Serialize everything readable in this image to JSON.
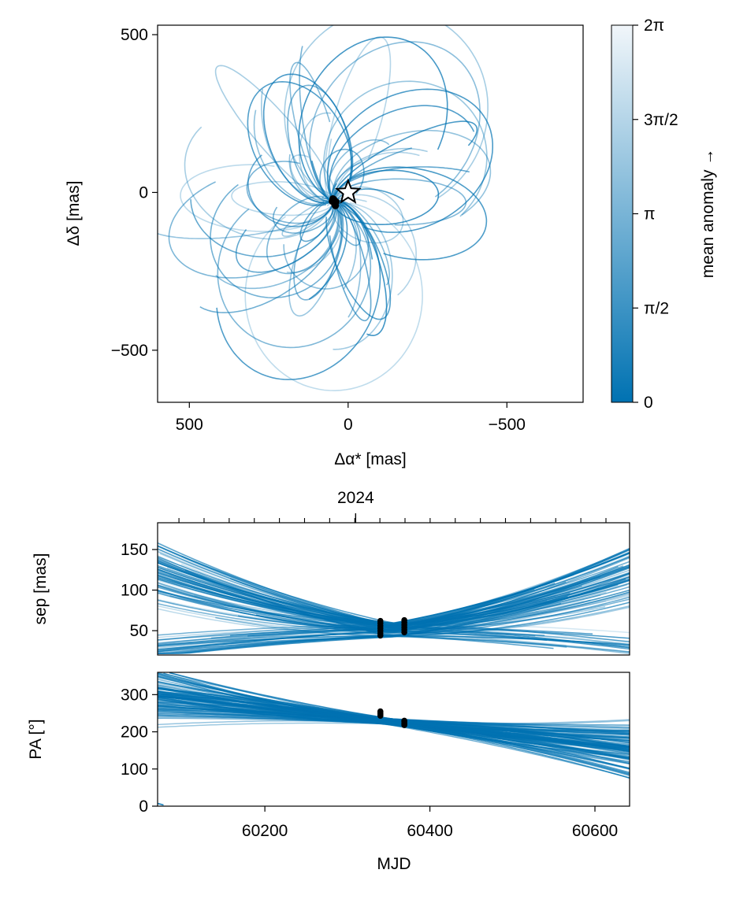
{
  "colors": {
    "orbit": "#0072b2",
    "marker": "#000000",
    "axis": "#000000"
  },
  "chart_data": [
    {
      "id": "sky",
      "type": "line",
      "xlabel": "Δα* [mas]",
      "ylabel": "Δδ [mas]",
      "xlim": [
        600,
        -740
      ],
      "ylim": [
        -665,
        530
      ],
      "xticks": [
        500,
        0,
        -500
      ],
      "xtick_labels": [
        "500",
        "0",
        "−500"
      ],
      "yticks": [
        500,
        0,
        -500
      ],
      "ytick_labels": [
        "500",
        "0",
        "−500"
      ],
      "star": [
        0,
        0
      ],
      "observations": [
        [
          38,
          -30
        ],
        [
          42,
          -38
        ],
        [
          45,
          -22
        ],
        [
          50,
          -28
        ],
        [
          48,
          -20
        ],
        [
          40,
          -42
        ]
      ],
      "colorbar": {
        "label": "mean anomaly →",
        "ticks": [
          0,
          1.5708,
          3.1416,
          4.7124,
          6.2832
        ],
        "tick_labels": [
          "0",
          "π/2",
          "π",
          "3π/2",
          "2π"
        ],
        "range": [
          0,
          6.2832
        ]
      }
    },
    {
      "id": "sep",
      "type": "line",
      "xlabel": "",
      "ylabel": "sep [mas]",
      "xlim": [
        60070,
        60642
      ],
      "ylim": [
        20,
        183
      ],
      "yticks": [
        50,
        100,
        150
      ],
      "ytick_labels": [
        "50",
        "100",
        "150"
      ],
      "top_axis_label": "2024",
      "top_axis_label_mjd": 60310,
      "observations": [
        {
          "mjd": 60340,
          "values": [
            44,
            47,
            50,
            53,
            56,
            59,
            62
          ]
        },
        {
          "mjd": 60369,
          "values": [
            48,
            51,
            54,
            57,
            60,
            63
          ]
        }
      ]
    },
    {
      "id": "pa",
      "type": "line",
      "xlabel": "MJD",
      "ylabel": "PA [°]",
      "xlim": [
        60070,
        60642
      ],
      "ylim": [
        0,
        360
      ],
      "xticks": [
        60200,
        60400,
        60600
      ],
      "xtick_labels": [
        "60200",
        "60400",
        "60600"
      ],
      "yticks": [
        0,
        100,
        200,
        300
      ],
      "ytick_labels": [
        "0",
        "100",
        "200",
        "300"
      ],
      "observations": [
        {
          "mjd": 60340,
          "values": [
            243,
            246,
            249,
            252,
            255
          ]
        },
        {
          "mjd": 60369,
          "values": [
            218,
            221,
            224,
            227,
            230
          ]
        }
      ]
    }
  ]
}
